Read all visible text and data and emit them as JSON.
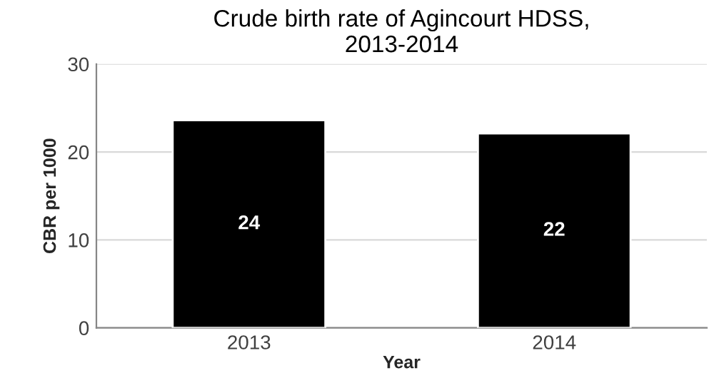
{
  "chart_data": {
    "type": "bar",
    "title": "Crude birth rate of Agincourt HDSS,\n2013-2014",
    "xlabel": "Year",
    "ylabel": "CBR per 1000",
    "categories": [
      "2013",
      "2014"
    ],
    "values": [
      23.6,
      22.1
    ],
    "value_labels": [
      "24",
      "22"
    ],
    "color": "#000000",
    "ylim": [
      0,
      30
    ],
    "yticks": [
      0,
      10,
      20,
      30
    ],
    "grid": "y"
  }
}
